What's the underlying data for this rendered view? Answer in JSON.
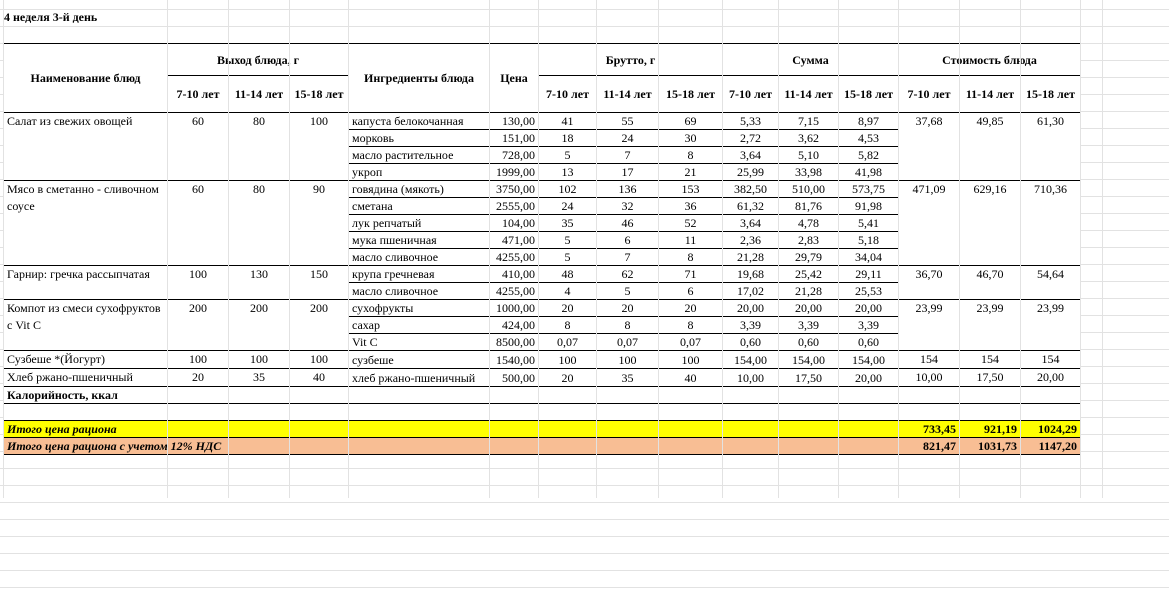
{
  "title": "4 неделя 3-й день",
  "headers": {
    "dish_name": "Наименование блюд",
    "yield": "Выход блюда, г",
    "ingredients": "Ингредиенты блюда",
    "price": "Цена",
    "brutto": "Брутто, г",
    "sum": "Сумма",
    "cost": "Стоимость блюда",
    "ages": [
      "7-10 лет",
      "11-14 лет",
      "15-18 лет"
    ]
  },
  "dishes": [
    {
      "name": "Салат из свежих овощей",
      "yield": [
        "60",
        "80",
        "100"
      ],
      "cost": [
        "37,68",
        "49,85",
        "61,30"
      ],
      "ingredients": [
        {
          "name": "капуста белокочанная",
          "price": "130,00",
          "brutto": [
            "41",
            "55",
            "69"
          ],
          "sum": [
            "5,33",
            "7,15",
            "8,97"
          ]
        },
        {
          "name": "морковь",
          "price": "151,00",
          "brutto": [
            "18",
            "24",
            "30"
          ],
          "sum": [
            "2,72",
            "3,62",
            "4,53"
          ]
        },
        {
          "name": "масло растительное",
          "price": "728,00",
          "brutto": [
            "5",
            "7",
            "8"
          ],
          "sum": [
            "3,64",
            "5,10",
            "5,82"
          ]
        },
        {
          "name": "укроп",
          "price": "1999,00",
          "brutto": [
            "13",
            "17",
            "21"
          ],
          "sum": [
            "25,99",
            "33,98",
            "41,98"
          ]
        }
      ]
    },
    {
      "name": "Мясо в сметанно - сливочном соусе",
      "yield": [
        "60",
        "80",
        "90"
      ],
      "cost": [
        "471,09",
        "629,16",
        "710,36"
      ],
      "ingredients": [
        {
          "name": "говядина (мякоть)",
          "price": "3750,00",
          "brutto": [
            "102",
            "136",
            "153"
          ],
          "sum": [
            "382,50",
            "510,00",
            "573,75"
          ]
        },
        {
          "name": "сметана",
          "price": "2555,00",
          "brutto": [
            "24",
            "32",
            "36"
          ],
          "sum": [
            "61,32",
            "81,76",
            "91,98"
          ]
        },
        {
          "name": "лук репчатый",
          "price": "104,00",
          "brutto": [
            "35",
            "46",
            "52"
          ],
          "sum": [
            "3,64",
            "4,78",
            "5,41"
          ]
        },
        {
          "name": "мука пшеничная",
          "price": "471,00",
          "brutto": [
            "5",
            "6",
            "11"
          ],
          "sum": [
            "2,36",
            "2,83",
            "5,18"
          ]
        },
        {
          "name": "масло сливочное",
          "price": "4255,00",
          "brutto": [
            "5",
            "7",
            "8"
          ],
          "sum": [
            "21,28",
            "29,79",
            "34,04"
          ]
        }
      ]
    },
    {
      "name": "Гарнир: гречка рассыпчатая",
      "yield": [
        "100",
        "130",
        "150"
      ],
      "cost": [
        "36,70",
        "46,70",
        "54,64"
      ],
      "ingredients": [
        {
          "name": "крупа гречневая",
          "price": "410,00",
          "brutto": [
            "48",
            "62",
            "71"
          ],
          "sum": [
            "19,68",
            "25,42",
            "29,11"
          ]
        },
        {
          "name": "масло сливочное",
          "price": "4255,00",
          "brutto": [
            "4",
            "5",
            "6"
          ],
          "sum": [
            "17,02",
            "21,28",
            "25,53"
          ]
        }
      ]
    },
    {
      "name": "Компот из смеси сухофруктов с Vit C",
      "yield": [
        "200",
        "200",
        "200"
      ],
      "cost": [
        "23,99",
        "23,99",
        "23,99"
      ],
      "ingredients": [
        {
          "name": "сухофрукты",
          "price": "1000,00",
          "brutto": [
            "20",
            "20",
            "20"
          ],
          "sum": [
            "20,00",
            "20,00",
            "20,00"
          ]
        },
        {
          "name": "сахар",
          "price": "424,00",
          "brutto": [
            "8",
            "8",
            "8"
          ],
          "sum": [
            "3,39",
            "3,39",
            "3,39"
          ]
        },
        {
          "name": "Vit C",
          "price": "8500,00",
          "brutto": [
            "0,07",
            "0,07",
            "0,07"
          ],
          "sum": [
            "0,60",
            "0,60",
            "0,60"
          ]
        }
      ]
    },
    {
      "name": "Сузбеше *(Йогурт)",
      "yield": [
        "100",
        "100",
        "100"
      ],
      "cost": [
        "154",
        "154",
        "154"
      ],
      "ingredients": [
        {
          "name": "сузбеше",
          "price": "1540,00",
          "brutto": [
            "100",
            "100",
            "100"
          ],
          "sum": [
            "154,00",
            "154,00",
            "154,00"
          ]
        }
      ]
    },
    {
      "name": "Хлеб ржано-пшеничный",
      "yield": [
        "20",
        "35",
        "40"
      ],
      "cost": [
        "10,00",
        "17,50",
        "20,00"
      ],
      "ingredients": [
        {
          "name": "хлеб ржано-пшеничный",
          "price": "500,00",
          "brutto": [
            "20",
            "35",
            "40"
          ],
          "sum": [
            "10,00",
            "17,50",
            "20,00"
          ]
        }
      ]
    }
  ],
  "calories_label": "Калорийность, ккал",
  "total": {
    "label": "Итого цена рациона",
    "values": [
      "733,45",
      "921,19",
      "1024,29"
    ],
    "color": "#ffff00"
  },
  "total_vat": {
    "label": "Итого цена рациона с учетом 12% НДС",
    "values": [
      "821,47",
      "1031,73",
      "1147,20"
    ],
    "color": "#f8be94"
  }
}
